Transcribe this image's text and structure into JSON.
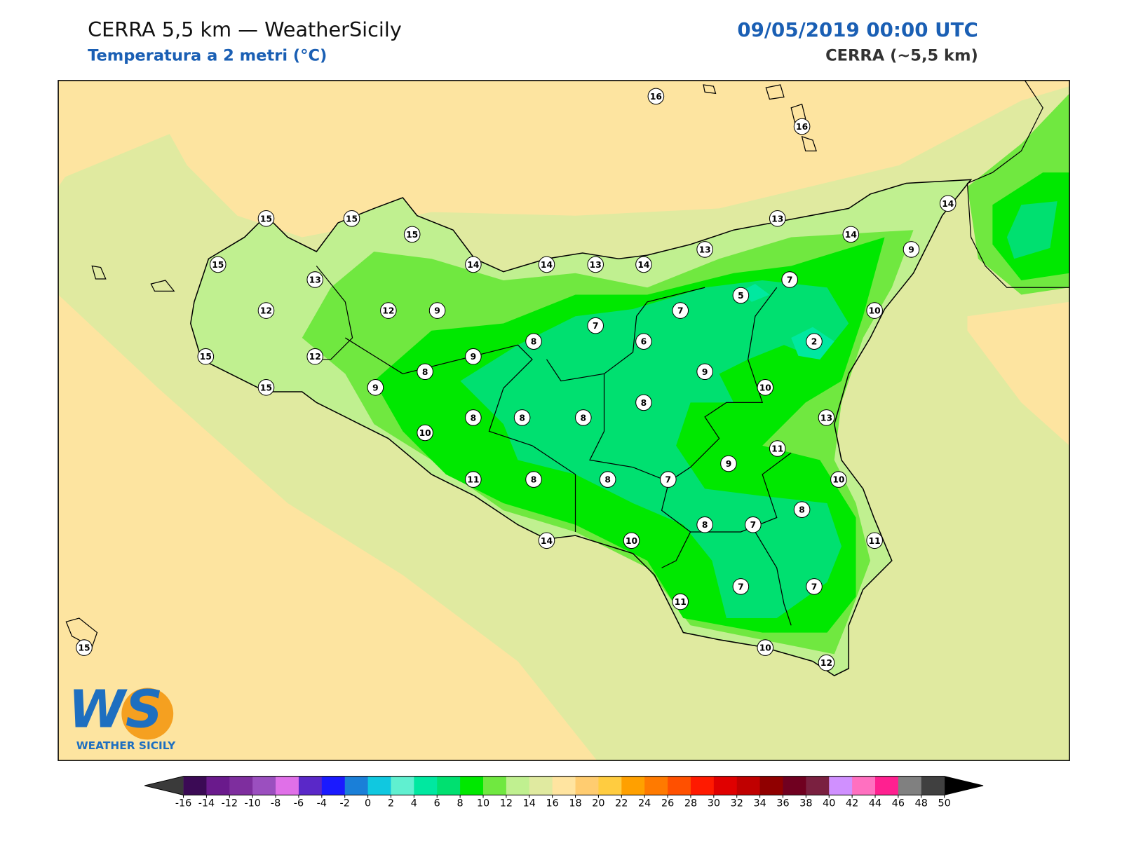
{
  "header": {
    "title": "CERRA 5,5 km — WeatherSicily",
    "subtitle": "Temperatura a 2 metri (°C)",
    "datetime": "09/05/2019 00:00 UTC",
    "model": "CERRA (~5,5 km)"
  },
  "map": {
    "stations": [
      16,
      16,
      14,
      15,
      15,
      15,
      13,
      14,
      15,
      14,
      14,
      13,
      14,
      13,
      9,
      13,
      7,
      5,
      12,
      12,
      9,
      7,
      10,
      7,
      8,
      6,
      2,
      15,
      12,
      9,
      8,
      9,
      9,
      15,
      10,
      8,
      8,
      8,
      8,
      13,
      10,
      11,
      9,
      11,
      8,
      8,
      7,
      10,
      8,
      8,
      7,
      14,
      10,
      11,
      7,
      7,
      11,
      10,
      12,
      15
    ]
  },
  "colorbar": {
    "ticks": [
      -16,
      -14,
      -12,
      -10,
      -8,
      -6,
      -4,
      -2,
      0,
      2,
      4,
      6,
      8,
      10,
      12,
      14,
      16,
      18,
      20,
      22,
      24,
      26,
      28,
      30,
      32,
      34,
      36,
      38,
      40,
      42,
      44,
      46,
      48,
      50
    ],
    "colors": [
      "#3b0a55",
      "#6a1a8c",
      "#7e2e9e",
      "#9b4fbf",
      "#e070e8",
      "#5a28c8",
      "#1a1aff",
      "#1a7fd8",
      "#10c8e0",
      "#60f0d0",
      "#00e8a0",
      "#00e070",
      "#00e800",
      "#70e840",
      "#c0f090",
      "#e0eaa0",
      "#ffe4a0",
      "#ffcc70",
      "#ffcc40",
      "#ffa000",
      "#ff7a00",
      "#ff5000",
      "#ff1a00",
      "#e00000",
      "#c00000",
      "#900000",
      "#700020",
      "#7a2040",
      "#d090ff",
      "#ff70c0",
      "#ff2090",
      "#808080",
      "#404040"
    ],
    "under_color": "#3a3a3a",
    "over_color": "#000000"
  },
  "logo": {
    "text": "WS",
    "caption": "WEATHER SICILY"
  }
}
